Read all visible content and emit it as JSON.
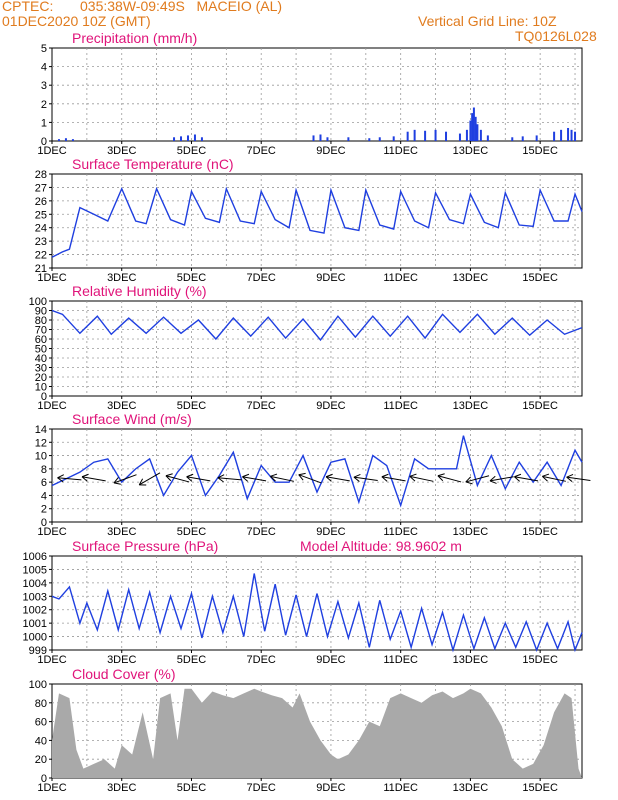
{
  "header": {
    "source": "CPTEC:",
    "location": "035:38W-09:49S   MACEIO (AL)",
    "init_time": "01DEC2020 10Z (GMT)",
    "grid_note": "Vertical Grid Line: 10Z",
    "model_code": "TQ0126L028"
  },
  "colors": {
    "header_text": "#e07b1e",
    "title_text": "#e0147a",
    "line": "#1f3fe0",
    "bar": "#1f3fe0",
    "cloud": "#a9a9a9",
    "arrow": "#000000"
  },
  "chart_data": [
    {
      "type": "bar",
      "title": "Precipitation (mm/h)",
      "xlabel": "",
      "ylabel": "",
      "ylim": [
        0,
        5
      ],
      "yticks": [
        0,
        1,
        2,
        3,
        4,
        5
      ],
      "x_ticks": [
        "1DEC",
        "3DEC",
        "5DEC",
        "7DEC",
        "9DEC",
        "11DEC",
        "13DEC",
        "15DEC"
      ],
      "grid": true,
      "x_range_days": [
        1,
        16.2
      ],
      "x": [
        1.2,
        1.4,
        1.6,
        4.5,
        4.7,
        4.9,
        5.1,
        5.3,
        8.5,
        8.7,
        8.9,
        9.5,
        10.1,
        10.4,
        10.8,
        11.2,
        11.4,
        11.7,
        12.0,
        12.3,
        12.7,
        12.9,
        13.0,
        13.05,
        13.1,
        13.15,
        13.2,
        13.3,
        13.5,
        14.2,
        14.5,
        14.9,
        15.4,
        15.6,
        15.8,
        15.9,
        16.0
      ],
      "values": [
        0.1,
        0.15,
        0.1,
        0.2,
        0.25,
        0.3,
        0.35,
        0.2,
        0.3,
        0.35,
        0.2,
        0.2,
        0.15,
        0.2,
        0.25,
        0.5,
        0.6,
        0.55,
        0.6,
        0.5,
        0.4,
        0.6,
        1.1,
        1.5,
        1.8,
        1.3,
        0.9,
        0.6,
        0.3,
        0.2,
        0.25,
        0.3,
        0.5,
        0.6,
        0.7,
        0.6,
        0.5
      ]
    },
    {
      "type": "line",
      "title": "Surface Temperature (nC)",
      "ylim": [
        21,
        28
      ],
      "yticks": [
        21,
        22,
        23,
        24,
        25,
        26,
        27,
        28
      ],
      "x_ticks": [
        "1DEC",
        "3DEC",
        "5DEC",
        "7DEC",
        "9DEC",
        "11DEC",
        "13DEC",
        "15DEC"
      ],
      "grid": true,
      "x_range_days": [
        1,
        16.2
      ],
      "x": [
        1.0,
        1.3,
        1.5,
        1.8,
        2.2,
        2.6,
        3.0,
        3.4,
        3.7,
        4.0,
        4.4,
        4.8,
        5.0,
        5.4,
        5.8,
        6.0,
        6.4,
        6.8,
        7.0,
        7.4,
        7.8,
        8.0,
        8.4,
        8.8,
        9.0,
        9.4,
        9.8,
        10.0,
        10.4,
        10.8,
        11.0,
        11.4,
        11.8,
        12.0,
        12.4,
        12.8,
        13.0,
        13.4,
        13.8,
        14.0,
        14.4,
        14.8,
        15.0,
        15.4,
        15.8,
        16.0,
        16.2
      ],
      "values": [
        21.8,
        22.2,
        22.4,
        25.5,
        25.0,
        24.5,
        26.9,
        24.5,
        24.3,
        26.9,
        24.6,
        24.2,
        26.7,
        24.7,
        24.4,
        26.9,
        24.5,
        24.3,
        26.7,
        24.6,
        24.0,
        26.8,
        23.8,
        23.6,
        26.8,
        24.0,
        23.8,
        26.8,
        24.2,
        23.9,
        26.7,
        24.5,
        24.0,
        26.6,
        24.6,
        24.3,
        26.5,
        24.4,
        24.0,
        26.6,
        24.2,
        24.1,
        26.8,
        24.5,
        24.5,
        26.5,
        25.2
      ]
    },
    {
      "type": "line",
      "title": "Relative Humidity (%)",
      "ylim": [
        0,
        100
      ],
      "yticks": [
        0,
        10,
        20,
        30,
        40,
        50,
        60,
        70,
        80,
        90,
        100
      ],
      "x_ticks": [
        "1DEC",
        "3DEC",
        "5DEC",
        "7DEC",
        "9DEC",
        "11DEC",
        "13DEC",
        "15DEC"
      ],
      "grid": true,
      "x_range_days": [
        1,
        16.2
      ],
      "x": [
        1.0,
        1.3,
        1.8,
        2.3,
        2.7,
        3.2,
        3.7,
        4.2,
        4.7,
        5.2,
        5.7,
        6.2,
        6.7,
        7.2,
        7.7,
        8.2,
        8.7,
        9.2,
        9.7,
        10.2,
        10.7,
        11.2,
        11.7,
        12.2,
        12.7,
        13.2,
        13.7,
        14.2,
        14.7,
        15.2,
        15.7,
        16.2
      ],
      "values": [
        90,
        86,
        66,
        84,
        65,
        82,
        66,
        83,
        66,
        80,
        60,
        82,
        63,
        83,
        61,
        81,
        59,
        84,
        62,
        84,
        63,
        84,
        61,
        86,
        67,
        86,
        65,
        82,
        64,
        80,
        65,
        72
      ]
    },
    {
      "type": "line",
      "title": "Surface Wind (m/s)",
      "ylim": [
        0,
        14
      ],
      "yticks": [
        0,
        2,
        4,
        6,
        8,
        10,
        12,
        14
      ],
      "x_ticks": [
        "1DEC",
        "3DEC",
        "5DEC",
        "7DEC",
        "9DEC",
        "11DEC",
        "13DEC",
        "15DEC"
      ],
      "grid": true,
      "x_range_days": [
        1,
        16.2
      ],
      "x": [
        1.0,
        1.4,
        1.8,
        2.2,
        2.6,
        3.0,
        3.4,
        3.8,
        4.2,
        4.6,
        5.0,
        5.4,
        5.8,
        6.2,
        6.6,
        7.0,
        7.4,
        7.8,
        8.2,
        8.6,
        9.0,
        9.4,
        9.8,
        10.2,
        10.6,
        11.0,
        11.4,
        11.8,
        12.2,
        12.6,
        12.8,
        13.2,
        13.6,
        14.0,
        14.4,
        14.8,
        15.2,
        15.6,
        16.0,
        16.2
      ],
      "values": [
        5.5,
        6.5,
        7.5,
        9.0,
        9.5,
        6.0,
        8.0,
        9.5,
        4.0,
        7.5,
        10.0,
        4.0,
        7.0,
        10.5,
        3.5,
        8.5,
        6.0,
        6.0,
        10.0,
        4.5,
        9.0,
        9.5,
        3.0,
        10.0,
        8.5,
        2.5,
        9.5,
        8.0,
        8.0,
        8.0,
        13.0,
        5.5,
        10.0,
        5.0,
        9.0,
        6.0,
        9.0,
        5.5,
        10.8,
        9.0
      ],
      "arrow_y": 6.5,
      "arrow_x": [
        1.5,
        2.2,
        3.1,
        3.8,
        4.6,
        5.2,
        6.1,
        6.8,
        7.6,
        8.4,
        9.2,
        10.0,
        10.8,
        11.6,
        12.4,
        13.2,
        13.9,
        14.6,
        15.4,
        16.1
      ],
      "arrow_dir_deg": [
        175,
        170,
        200,
        210,
        165,
        170,
        175,
        170,
        168,
        160,
        170,
        172,
        170,
        168,
        165,
        195,
        190,
        170,
        168,
        172
      ]
    },
    {
      "type": "line",
      "title": "Surface Pressure (hPa)",
      "annotation": "Model Altitude: 98.9602 m",
      "ylim": [
        999,
        1006
      ],
      "yticks": [
        999,
        1000,
        1001,
        1002,
        1003,
        1004,
        1005,
        1006
      ],
      "x_ticks": [
        "1DEC",
        "3DEC",
        "5DEC",
        "7DEC",
        "9DEC",
        "11DEC",
        "13DEC",
        "15DEC"
      ],
      "grid": true,
      "x_range_days": [
        1,
        16.2
      ],
      "x": [
        1.0,
        1.2,
        1.5,
        1.8,
        2.0,
        2.3,
        2.6,
        2.9,
        3.2,
        3.5,
        3.8,
        4.1,
        4.4,
        4.7,
        5.0,
        5.3,
        5.6,
        5.9,
        6.2,
        6.5,
        6.8,
        7.1,
        7.4,
        7.7,
        8.0,
        8.3,
        8.6,
        8.9,
        9.2,
        9.5,
        9.8,
        10.1,
        10.4,
        10.7,
        11.0,
        11.3,
        11.6,
        11.9,
        12.2,
        12.5,
        12.8,
        13.1,
        13.4,
        13.7,
        14.0,
        14.3,
        14.6,
        14.9,
        15.2,
        15.5,
        15.8,
        16.0,
        16.2
      ],
      "values": [
        1003.0,
        1002.8,
        1003.7,
        1001.0,
        1002.5,
        1000.5,
        1003.4,
        1000.5,
        1003.5,
        1000.6,
        1003.3,
        1000.3,
        1003.0,
        1000.6,
        1003.2,
        999.9,
        1003.0,
        1000.3,
        1003.0,
        1000.0,
        1004.7,
        1000.4,
        1003.9,
        1000.1,
        1003.1,
        1000.0,
        1003.2,
        1000.0,
        1002.6,
        999.9,
        1002.5,
        999.2,
        1002.7,
        999.8,
        1001.9,
        999.2,
        1002.1,
        999.4,
        1001.8,
        999.0,
        1001.6,
        999.1,
        1001.4,
        999.1,
        1001.0,
        999.2,
        1001.1,
        998.9,
        1001.0,
        999.1,
        1001.1,
        998.9,
        1000.3
      ]
    },
    {
      "type": "area",
      "title": "Cloud Cover (%)",
      "ylim": [
        0,
        100
      ],
      "yticks": [
        0,
        20,
        40,
        60,
        80,
        100
      ],
      "x_ticks": [
        "1DEC",
        "3DEC",
        "5DEC",
        "7DEC",
        "9DEC",
        "11DEC",
        "13DEC",
        "15DEC"
      ],
      "grid": true,
      "x_range_days": [
        1,
        16.2
      ],
      "x": [
        1.0,
        1.2,
        1.5,
        1.7,
        1.9,
        2.2,
        2.5,
        2.8,
        3.0,
        3.3,
        3.6,
        3.9,
        4.1,
        4.4,
        4.6,
        4.8,
        5.0,
        5.3,
        5.6,
        5.9,
        6.2,
        6.5,
        6.8,
        7.0,
        7.3,
        7.6,
        7.9,
        8.1,
        8.4,
        8.7,
        9.0,
        9.2,
        9.5,
        9.8,
        10.1,
        10.4,
        10.7,
        11.0,
        11.3,
        11.6,
        11.9,
        12.2,
        12.5,
        12.8,
        13.0,
        13.3,
        13.6,
        13.9,
        14.2,
        14.5,
        14.8,
        15.1,
        15.4,
        15.7,
        15.9,
        16.1,
        16.2
      ],
      "values": [
        40,
        90,
        85,
        30,
        10,
        15,
        20,
        10,
        35,
        25,
        70,
        20,
        85,
        90,
        40,
        95,
        95,
        80,
        92,
        88,
        85,
        90,
        95,
        92,
        88,
        85,
        75,
        90,
        60,
        40,
        25,
        20,
        25,
        40,
        60,
        55,
        85,
        90,
        85,
        80,
        88,
        92,
        85,
        90,
        95,
        90,
        75,
        55,
        20,
        10,
        15,
        35,
        70,
        90,
        85,
        10,
        0
      ]
    }
  ]
}
